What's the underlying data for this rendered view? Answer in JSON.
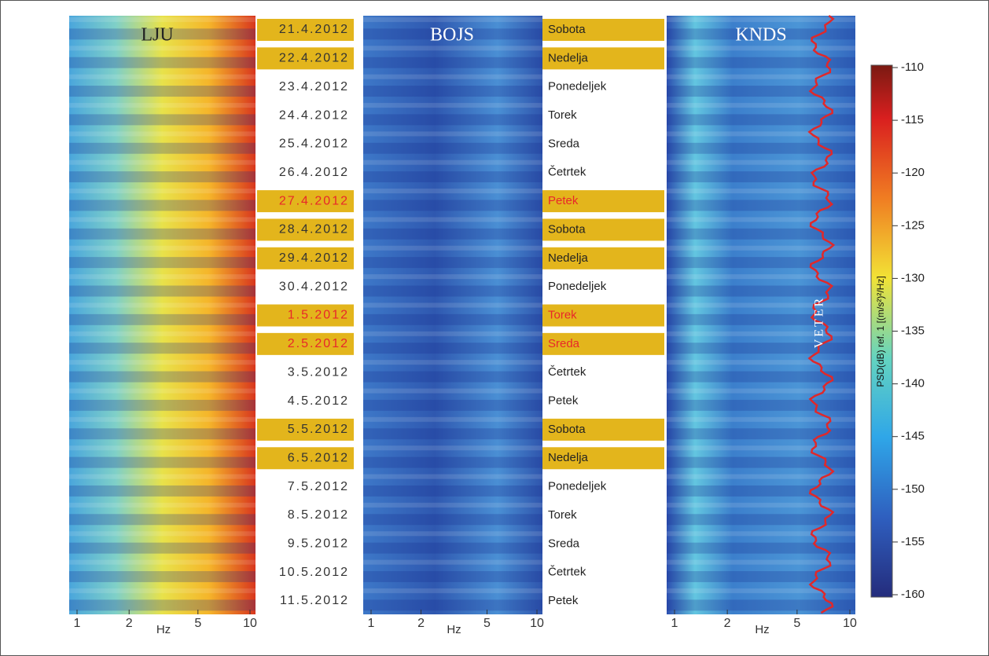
{
  "panels": [
    {
      "title": "LJU",
      "xlabel": "Hz",
      "xlim": [
        1,
        10
      ],
      "xticks": [
        1,
        2,
        5,
        10
      ]
    },
    {
      "title": "BOJS",
      "xlabel": "Hz",
      "xlim": [
        1,
        10
      ],
      "xticks": [
        1,
        2,
        5,
        10
      ]
    },
    {
      "title": "KNDS",
      "xlabel": "Hz",
      "xlim": [
        1,
        10
      ],
      "xticks": [
        1,
        2,
        5,
        10
      ],
      "annotation": "VETER"
    }
  ],
  "days": [
    {
      "date": "21.4.2012",
      "weekday": "Sobota",
      "highlight": true,
      "red": false
    },
    {
      "date": "22.4.2012",
      "weekday": "Nedelja",
      "highlight": true,
      "red": false
    },
    {
      "date": "23.4.2012",
      "weekday": "Ponedeljek",
      "highlight": false,
      "red": false
    },
    {
      "date": "24.4.2012",
      "weekday": "Torek",
      "highlight": false,
      "red": false
    },
    {
      "date": "25.4.2012",
      "weekday": "Sreda",
      "highlight": false,
      "red": false
    },
    {
      "date": "26.4.2012",
      "weekday": "Četrtek",
      "highlight": false,
      "red": false
    },
    {
      "date": "27.4.2012",
      "weekday": "Petek",
      "highlight": true,
      "red": true
    },
    {
      "date": "28.4.2012",
      "weekday": "Sobota",
      "highlight": true,
      "red": false
    },
    {
      "date": "29.4.2012",
      "weekday": "Nedelja",
      "highlight": true,
      "red": false
    },
    {
      "date": "30.4.2012",
      "weekday": "Ponedeljek",
      "highlight": false,
      "red": false
    },
    {
      "date": "1.5.2012",
      "weekday": "Torek",
      "highlight": true,
      "red": true
    },
    {
      "date": "2.5.2012",
      "weekday": "Sreda",
      "highlight": true,
      "red": true
    },
    {
      "date": "3.5.2012",
      "weekday": "Četrtek",
      "highlight": false,
      "red": false
    },
    {
      "date": "4.5.2012",
      "weekday": "Petek",
      "highlight": false,
      "red": false
    },
    {
      "date": "5.5.2012",
      "weekday": "Sobota",
      "highlight": true,
      "red": false
    },
    {
      "date": "6.5.2012",
      "weekday": "Nedelja",
      "highlight": true,
      "red": false
    },
    {
      "date": "7.5.2012",
      "weekday": "Ponedeljek",
      "highlight": false,
      "red": false
    },
    {
      "date": "8.5.2012",
      "weekday": "Torek",
      "highlight": false,
      "red": false
    },
    {
      "date": "9.5.2012",
      "weekday": "Sreda",
      "highlight": false,
      "red": false
    },
    {
      "date": "10.5.2012",
      "weekday": "Četrtek",
      "highlight": false,
      "red": false
    },
    {
      "date": "11.5.2012",
      "weekday": "Petek",
      "highlight": false,
      "red": false
    }
  ],
  "colorbar": {
    "label": "PSD(dB)  ref. 1 [(m/s²)²/Hz]",
    "lim": [
      -160,
      -110
    ],
    "ticks": [
      -110,
      -115,
      -120,
      -125,
      -130,
      -135,
      -140,
      -145,
      -150,
      -155,
      -160
    ]
  }
}
